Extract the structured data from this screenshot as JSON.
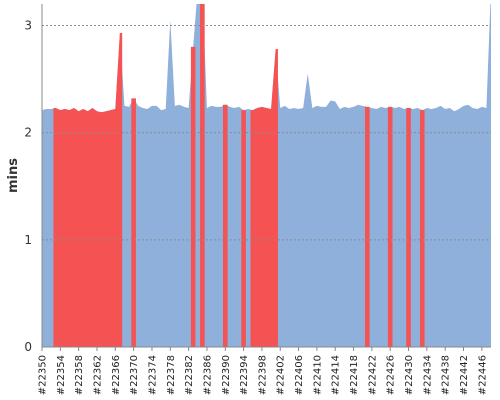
{
  "chart_data": {
    "type": "area",
    "ylabel": "mins",
    "ylim": [
      0,
      3.2
    ],
    "y_ticks": [
      0,
      1,
      2,
      3
    ],
    "grid": "horizontal dotted at y ticks",
    "build_start": 22350,
    "build_end": 22448,
    "x_tick_labels": [
      "#22350",
      "#22354",
      "#22358",
      "#22362",
      "#22366",
      "#22370",
      "#22374",
      "#22378",
      "#22382",
      "#22386",
      "#22390",
      "#22394",
      "#22398",
      "#22402",
      "#22406",
      "#22410",
      "#22414",
      "#22418",
      "#22422",
      "#22426",
      "#22430",
      "#22434",
      "#22438",
      "#22442",
      "#22446"
    ],
    "x_tick_values": [
      22350,
      22354,
      22358,
      22362,
      22366,
      22370,
      22374,
      22378,
      22382,
      22386,
      22390,
      22394,
      22398,
      22402,
      22406,
      22410,
      22414,
      22418,
      22422,
      22426,
      22430,
      22434,
      22438,
      22442,
      22446
    ],
    "values": [
      2.21,
      2.22,
      2.22,
      2.23,
      2.21,
      2.22,
      2.21,
      2.23,
      2.2,
      2.22,
      2.2,
      2.23,
      2.2,
      2.19,
      2.2,
      2.21,
      2.22,
      2.93,
      2.25,
      2.24,
      2.32,
      2.25,
      2.23,
      2.22,
      2.25,
      2.25,
      2.21,
      2.22,
      3.05,
      2.25,
      2.26,
      2.24,
      2.23,
      2.8,
      3.35,
      3.35,
      2.23,
      2.25,
      2.24,
      2.24,
      2.26,
      2.24,
      2.23,
      2.24,
      2.21,
      2.22,
      2.21,
      2.23,
      2.24,
      2.23,
      2.22,
      2.78,
      2.23,
      2.25,
      2.22,
      2.23,
      2.22,
      2.23,
      2.55,
      2.23,
      2.25,
      2.24,
      2.24,
      2.3,
      2.29,
      2.22,
      2.24,
      2.23,
      2.24,
      2.26,
      2.25,
      2.24,
      2.23,
      2.22,
      2.24,
      2.23,
      2.24,
      2.23,
      2.24,
      2.22,
      2.23,
      2.22,
      2.23,
      2.21,
      2.23,
      2.22,
      2.23,
      2.25,
      2.22,
      2.23,
      2.2,
      2.22,
      2.25,
      2.26,
      2.23,
      2.22,
      2.24,
      2.23,
      3.35
    ],
    "failed_builds": [
      22353,
      22354,
      22355,
      22356,
      22357,
      22358,
      22359,
      22360,
      22361,
      22362,
      22363,
      22364,
      22365,
      22366,
      22367,
      22370,
      22383,
      22385,
      22390,
      22394,
      22396,
      22397,
      22398,
      22399,
      22400,
      22401,
      22421,
      22426,
      22430,
      22433
    ],
    "colors": {
      "success": "#8fb0da",
      "failure": "#f55253",
      "grid": "#8c8c8c",
      "axis": "#888888"
    }
  }
}
